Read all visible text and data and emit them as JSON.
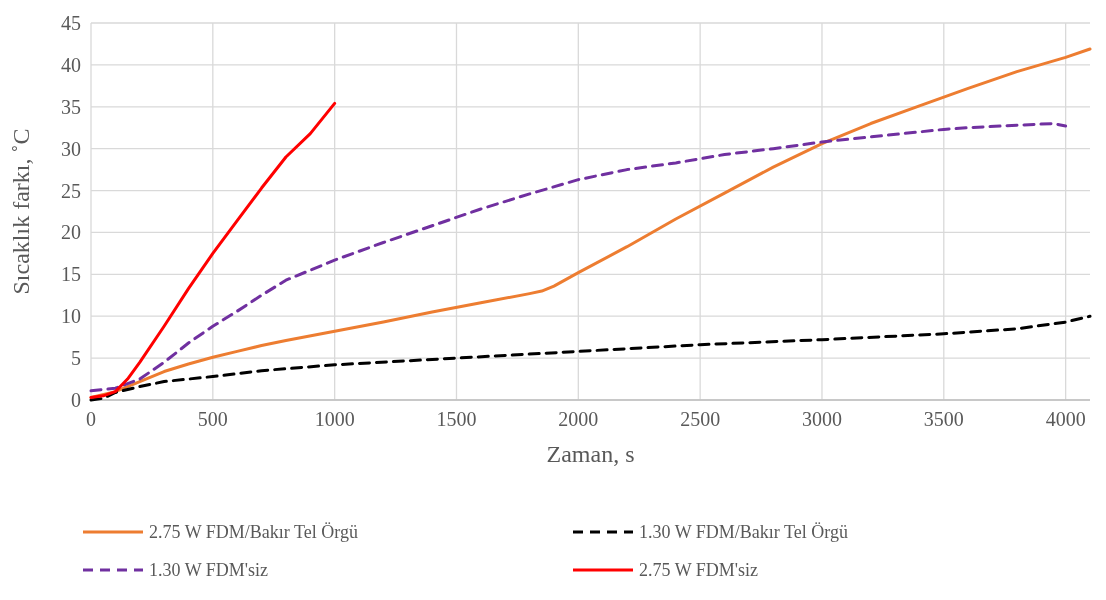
{
  "chart_data": {
    "type": "line",
    "xlabel": "Zaman, s",
    "ylabel": "Sıcaklık farkı, ˚C",
    "xlim": [
      0,
      4100
    ],
    "xticks": [
      0,
      500,
      1000,
      1500,
      2000,
      2500,
      3000,
      3500,
      4000
    ],
    "ylim": [
      0,
      45
    ],
    "yticks": [
      0,
      5,
      10,
      15,
      20,
      25,
      30,
      35,
      40,
      45
    ],
    "grid": true,
    "legend": "bottom",
    "series": [
      {
        "name": "2.75 W FDM/Bakır Tel Örgü",
        "color": "#ed7d31",
        "line_style": "solid",
        "x": [
          0,
          100,
          200,
          300,
          400,
          500,
          600,
          700,
          800,
          1000,
          1200,
          1400,
          1600,
          1800,
          1850,
          1900,
          2000,
          2200,
          2400,
          2600,
          2800,
          3000,
          3200,
          3400,
          3600,
          3800,
          4000,
          4100
        ],
        "values": [
          0.3,
          1.0,
          2.2,
          3.4,
          4.3,
          5.1,
          5.8,
          6.5,
          7.1,
          8.2,
          9.3,
          10.5,
          11.6,
          12.7,
          13.0,
          13.6,
          15.2,
          18.3,
          21.6,
          24.7,
          27.8,
          30.6,
          33.0,
          35.1,
          37.2,
          39.2,
          40.9,
          41.9
        ]
      },
      {
        "name": "1.30 W FDM/Bakır Tel Örgü",
        "color": "#000000",
        "line_style": "dashed",
        "x": [
          0,
          50,
          100,
          200,
          300,
          500,
          700,
          1000,
          1500,
          2000,
          2500,
          3000,
          3500,
          3800,
          4000,
          4100
        ],
        "values": [
          0,
          0.2,
          0.9,
          1.6,
          2.2,
          2.8,
          3.5,
          4.2,
          5.0,
          5.8,
          6.6,
          7.2,
          7.9,
          8.5,
          9.3,
          10.0
        ]
      },
      {
        "name": "1.30 W FDM'siz",
        "color": "#7030a0",
        "line_style": "dashed",
        "x": [
          0,
          100,
          200,
          300,
          400,
          500,
          600,
          700,
          800,
          1000,
          1200,
          1400,
          1600,
          1800,
          2000,
          2200,
          2400,
          2600,
          2800,
          3000,
          3200,
          3400,
          3500,
          3600,
          3800,
          3950,
          4000
        ],
        "values": [
          1.1,
          1.4,
          2.5,
          4.5,
          6.8,
          8.8,
          10.6,
          12.5,
          14.3,
          16.7,
          18.8,
          20.8,
          22.8,
          24.6,
          26.3,
          27.5,
          28.3,
          29.3,
          30.0,
          30.8,
          31.4,
          32.0,
          32.3,
          32.5,
          32.8,
          33.0,
          32.7
        ]
      },
      {
        "name": "2.75 W FDM'siz",
        "color": "#ff0000",
        "line_style": "solid",
        "x": [
          0,
          50,
          100,
          150,
          200,
          300,
          400,
          500,
          600,
          700,
          800,
          900,
          1000
        ],
        "values": [
          0.3,
          0.5,
          1.0,
          2.5,
          4.5,
          8.8,
          13.3,
          17.5,
          21.4,
          25.3,
          29.0,
          31.8,
          35.4
        ]
      }
    ]
  }
}
